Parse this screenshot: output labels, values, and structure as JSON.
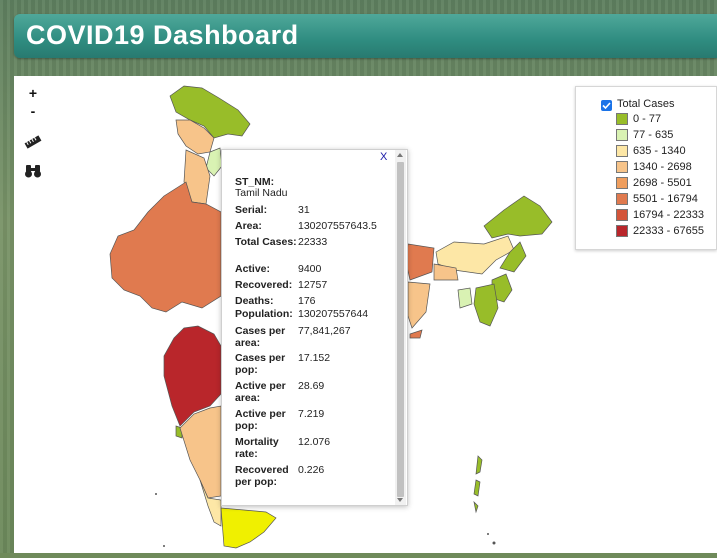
{
  "header": {
    "title": "COVID19 Dashboard"
  },
  "zoom": {
    "in_label": "+",
    "out_label": "-"
  },
  "tools": [
    {
      "icon": "ruler-icon"
    },
    {
      "icon": "binoculars-icon"
    }
  ],
  "legend": {
    "layer_checked": true,
    "layer_title": "Total Cases",
    "items": [
      {
        "label": "0 - 77",
        "color": "#98bd29"
      },
      {
        "label": "77 - 635",
        "color": "#d9f2b3"
      },
      {
        "label": "635 - 1340",
        "color": "#fde7a6"
      },
      {
        "label": "1340 - 2698",
        "color": "#f7c48a"
      },
      {
        "label": "2698 - 5501",
        "color": "#ef9e5e"
      },
      {
        "label": "5501 - 16794",
        "color": "#e07a4f"
      },
      {
        "label": "16794 - 22333",
        "color": "#d3553a"
      },
      {
        "label": "22333 - 67655",
        "color": "#b9262b"
      }
    ]
  },
  "popup": {
    "close_label": "X",
    "st_key": "ST_NM:",
    "st_val": "Tamil Nadu",
    "rows": [
      {
        "k": "Serial:",
        "v": "31"
      },
      {
        "k": "Area:",
        "v": "130207557643.5"
      },
      {
        "k": "Total Cases:",
        "v": "22333"
      },
      {
        "k": "Active:",
        "v": "9400"
      },
      {
        "k": "Recovered:",
        "v": "12757"
      },
      {
        "k": "Deaths:",
        "v": "176"
      },
      {
        "k": "Population:",
        "v": "130207557644"
      },
      {
        "k": "Cases per area:",
        "v": "77,841,267"
      },
      {
        "k": "Cases per pop:",
        "v": "17.152"
      },
      {
        "k": "Active per area:",
        "v": "28.69"
      },
      {
        "k": "Active per pop:",
        "v": "7.219"
      },
      {
        "k": "Mortality rate:",
        "v": "12.076"
      },
      {
        "k": "Recovered per pop:",
        "v": "0.226"
      }
    ]
  }
}
